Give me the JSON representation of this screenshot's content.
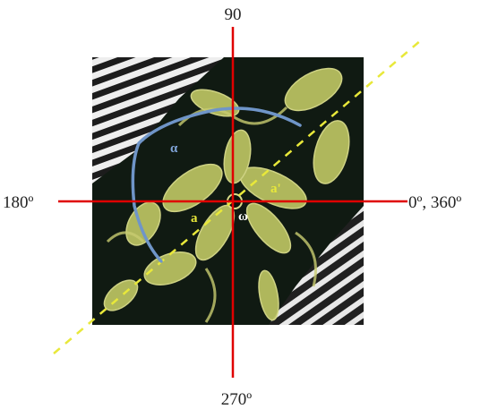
{
  "axis_labels": {
    "top": "90",
    "left": "180º",
    "right": "0º, 360º",
    "bottom": "270º"
  },
  "annotations": {
    "alpha": "α",
    "a": "a",
    "a_prime": "a'",
    "omega": "ω"
  },
  "colors": {
    "axis_line": "#e00000",
    "diagonal_line": "#e8e83a",
    "arc": "#6f95c8",
    "fabric_dark": "#101a12",
    "fabric_leaf": "#b8c060",
    "fabric_leaf_light": "#d9dc8a",
    "stripe_light": "#eeeeee",
    "stripe_dark": "#1c1c1c"
  },
  "image": {
    "subject": "batik-fabric-pattern"
  }
}
